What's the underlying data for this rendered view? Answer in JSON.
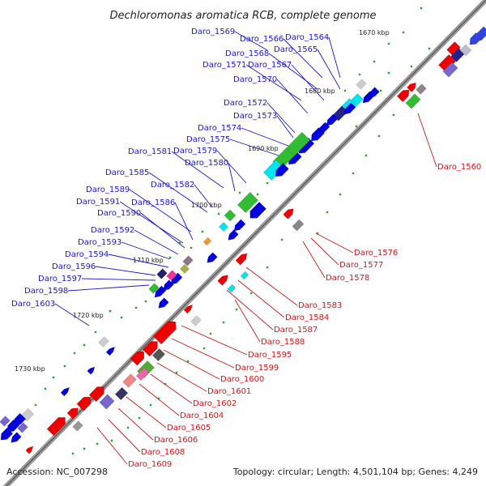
{
  "title": "Dechloromonas aromatica RCB, complete genome",
  "footer": {
    "accession": "Accession: NC_007298",
    "summary": "Topology: circular; Length: 4,501,104 bp; Genes: 4,249"
  },
  "scale_marks": [
    {
      "label": "1670 kbp",
      "kbp": 1670
    },
    {
      "label": "1680 kbp",
      "kbp": 1680
    },
    {
      "label": "1690 kbp",
      "kbp": 1690
    },
    {
      "label": "1700 kbp",
      "kbp": 1700
    },
    {
      "label": "1710 kbp",
      "kbp": 1710
    },
    {
      "label": "1720 kbp",
      "kbp": 1720
    },
    {
      "label": "1730 kbp",
      "kbp": 1730
    }
  ],
  "genes_forward_labels": [
    "Daro_1569",
    "Daro_1566",
    "Daro_1564",
    "Daro_1568",
    "Daro_1565",
    "Daro_1571",
    "Daro_1567",
    "Daro_1570",
    "Daro_1572",
    "Daro_1573",
    "Daro_1574",
    "Daro_1575",
    "Daro_1581",
    "Daro_1579",
    "Daro_1580",
    "Daro_1585",
    "Daro_1582",
    "Daro_1589",
    "Daro_1591",
    "Daro_1586",
    "Daro_1590",
    "Daro_1592",
    "Daro_1593",
    "Daro_1594",
    "Daro_1596",
    "Daro_1597",
    "Daro_1598",
    "Daro_1603"
  ],
  "genes_reverse_labels": [
    "Daro_1560",
    "Daro_1576",
    "Daro_1577",
    "Daro_1578",
    "Daro_1583",
    "Daro_1584",
    "Daro_1587",
    "Daro_1588",
    "Daro_1595",
    "Daro_1599",
    "Daro_1600",
    "Daro_1601",
    "Daro_1602",
    "Daro_1604",
    "Daro_1605",
    "Daro_1606",
    "Daro_1608",
    "Daro_1609"
  ],
  "colors": {
    "backbone": "#888888",
    "forward_label": "#1a1acc",
    "reverse_label": "#cc1a1a",
    "forward_gene": "#0000dd",
    "reverse_gene": "#ee0000",
    "green_gene": "#33bb33",
    "cyan_gene": "#00e5ee",
    "gray_gene": "#999999",
    "purple_gene": "#7766cc",
    "magenta_gene": "#ee3399",
    "orange_gene": "#ee9933",
    "feature_dot": "#22aa22"
  }
}
